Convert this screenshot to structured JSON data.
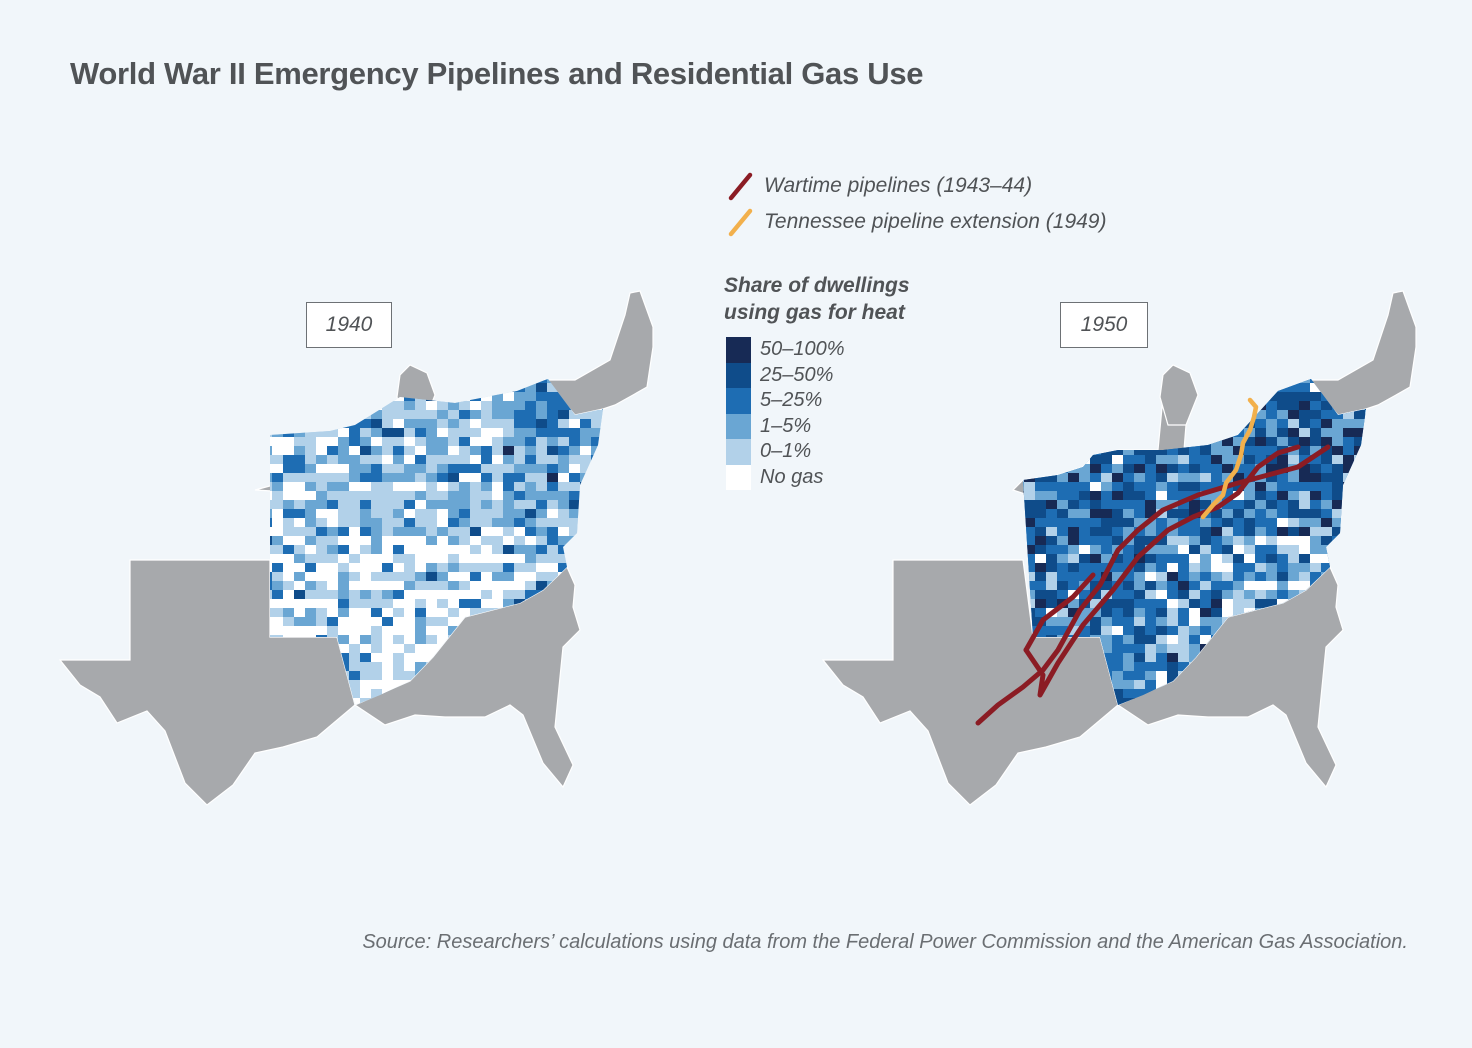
{
  "title": "World War II Emergency Pipelines and Residential Gas Use",
  "maps": [
    {
      "year": "1940"
    },
    {
      "year": "1950"
    }
  ],
  "line_legend": [
    {
      "label": "Wartime pipelines (1943–44)",
      "color": "#8b1c24"
    },
    {
      "label": "Tennessee pipeline extension (1949)",
      "color": "#f2b04c"
    }
  ],
  "color_legend": {
    "title_line1": "Share of dwellings",
    "title_line2": "using gas for heat",
    "items": [
      {
        "label": "50–100%",
        "color": "#172a55"
      },
      {
        "label": "25–50%",
        "color": "#0f4c8a"
      },
      {
        "label": "5–25%",
        "color": "#1e6db3"
      },
      {
        "label": "1–5%",
        "color": "#6aa6d3"
      },
      {
        "label": "0–1%",
        "color": "#b2d1e9"
      },
      {
        "label": "No gas",
        "color": "#ffffff"
      }
    ]
  },
  "colors": {
    "land": "#a7a9ac",
    "background": "#f1f6fa"
  },
  "source": "Source: Researchers’ calculations using data from the Federal Power Commission and the American Gas Association."
}
